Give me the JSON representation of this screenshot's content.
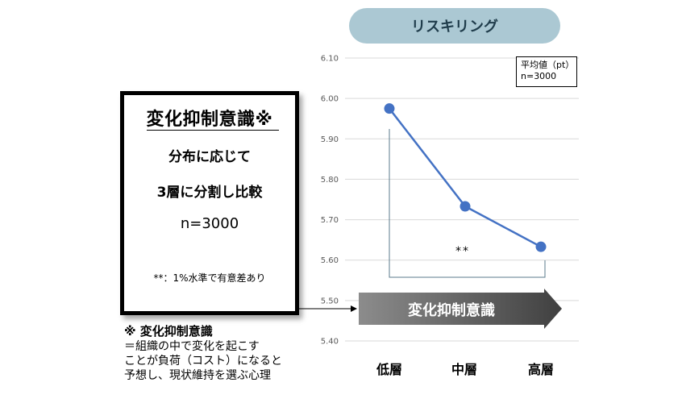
{
  "left_box": {
    "title": "変化抑制意識※",
    "line1": "分布に応じて",
    "line2": "3層に分割し比較",
    "n": "n=3000",
    "note": "**：1%水準で有意差あり"
  },
  "definition": {
    "title": "※ 変化抑制意識",
    "lines": [
      "＝組織の中で変化を起こす",
      "ことが負荷（コスト）になると",
      "予想し、現状維持を選ぶ心理"
    ]
  },
  "header_pill": "リスキリング",
  "legend": {
    "line1": "平均値（pt）",
    "line2": "n=3000"
  },
  "arrow_label": "変化抑制意識",
  "significance": "**",
  "colors": {
    "line": "#4472c4",
    "pill": "#abc8d3",
    "grid": "#d9d9d9",
    "arrow_dark": "#404040",
    "arrow_light": "#8c8c8c"
  },
  "chart_data": {
    "type": "line",
    "categories": [
      "低層",
      "中層",
      "高層"
    ],
    "series": [
      {
        "values": [
          5.975,
          5.733,
          5.633
        ]
      }
    ],
    "yticks": [
      "6.10",
      "6.00",
      "5.90",
      "5.80",
      "5.70",
      "5.60",
      "5.50",
      "5.40"
    ],
    "ylim": [
      5.4,
      6.1
    ],
    "grid": true
  }
}
